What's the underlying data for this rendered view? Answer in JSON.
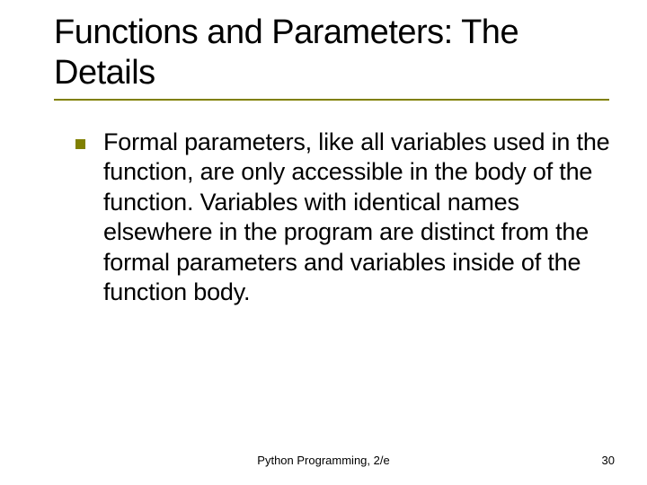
{
  "slide": {
    "title": "Functions and Parameters: The Details",
    "title_fontsize": 38,
    "title_color": "#000000",
    "underline_color": "#808000",
    "underline_height": 2,
    "bullet_color": "#808000",
    "bullet_size": 11,
    "body_fontsize": 27,
    "body_color": "#000000",
    "background_color": "#ffffff",
    "body_text": "Formal parameters, like all variables used in the function, are only accessible in the body of the function. Variables with identical names elsewhere in the program are distinct from the formal parameters and variables inside of the function body."
  },
  "footer": {
    "center": "Python Programming, 2/e",
    "page_number": "30",
    "fontsize": 13,
    "color": "#000000"
  }
}
